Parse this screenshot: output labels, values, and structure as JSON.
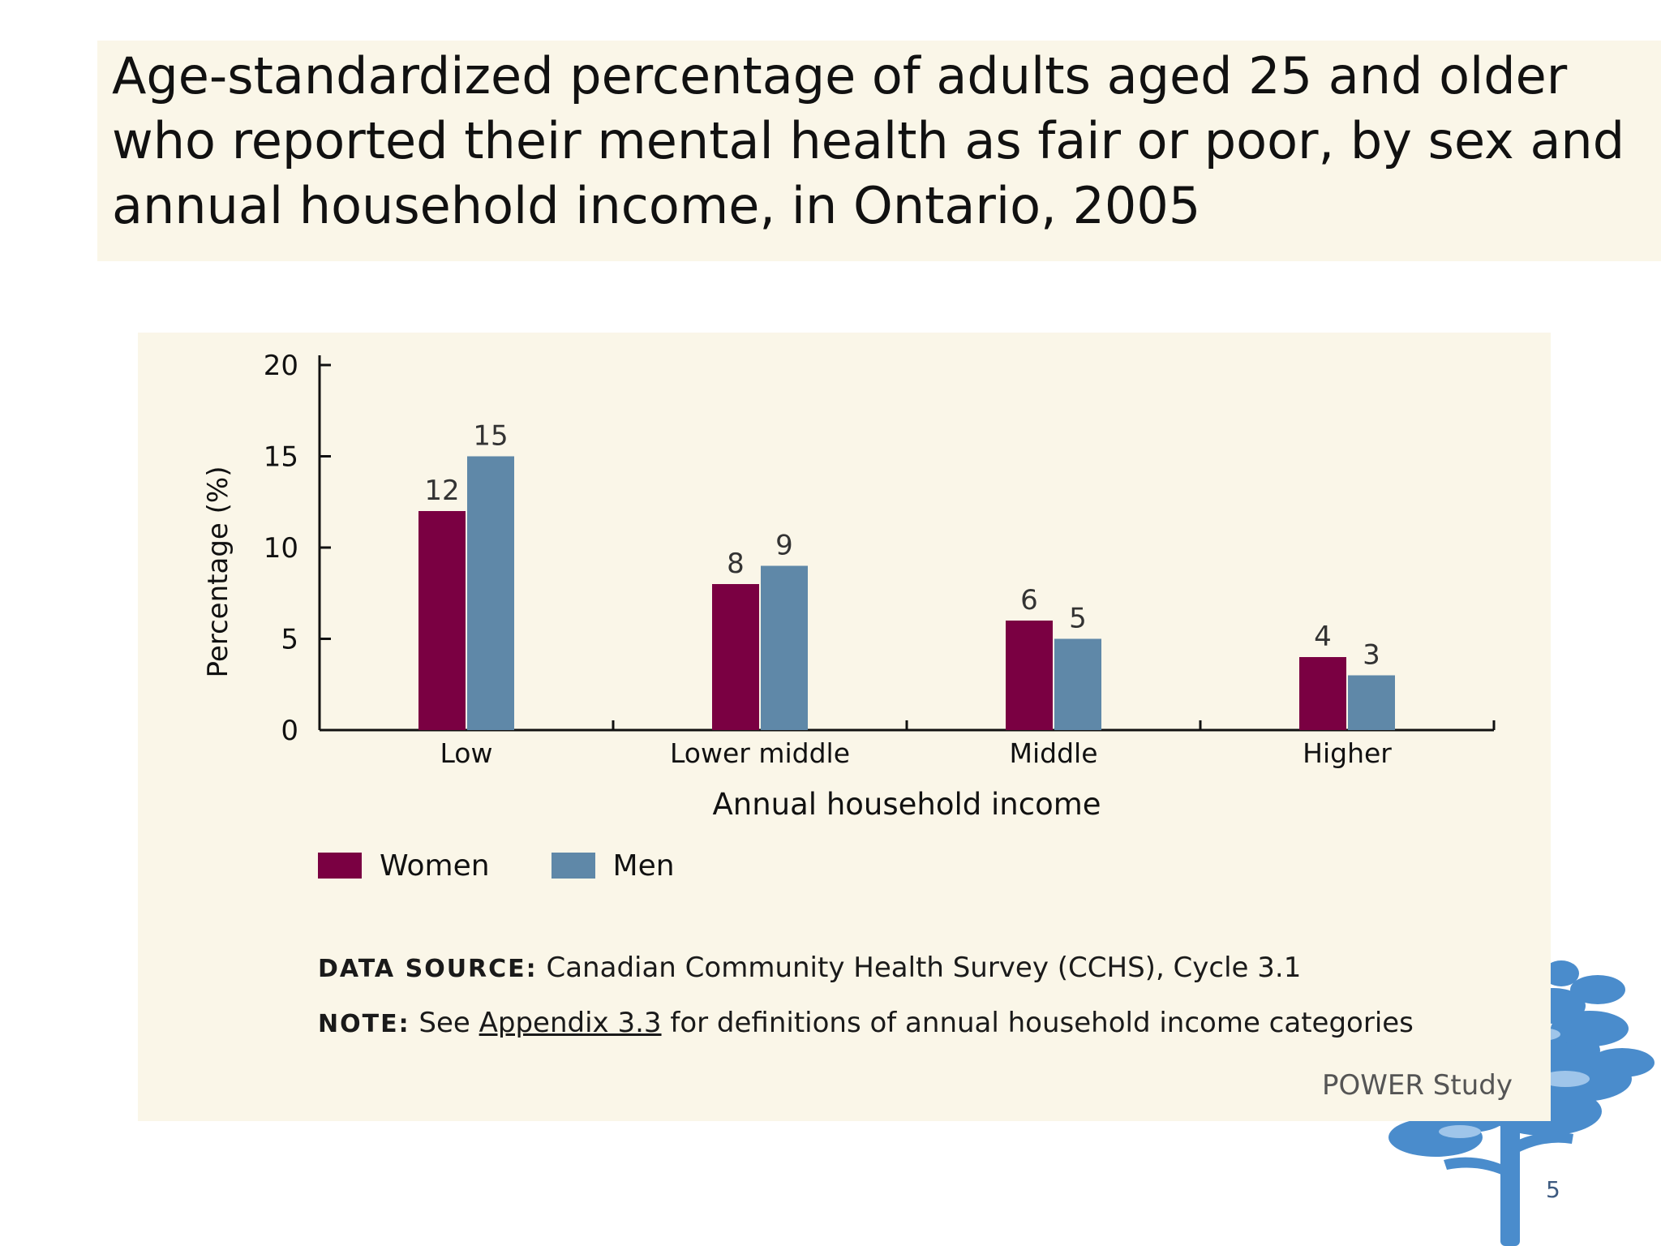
{
  "slide": {
    "title": "Age-standardized percentage of adults aged 25 and older who reported their mental health as fair or poor, by sex and annual household income, in Ontario, 2005",
    "watermark": "POWER Study",
    "page_number": "5"
  },
  "notes": {
    "data_source_key": "DATA SOURCE:",
    "data_source_text": "Canadian Community Health Survey (CCHS), Cycle 3.1",
    "note_key": "NOTE:",
    "note_prefix": "See",
    "note_link": "Appendix 3.3",
    "note_suffix": "for definitions of annual household income categories"
  },
  "colors": {
    "women": "#7a0042",
    "men": "#5f88a8",
    "panel": "#faf6e8",
    "tree": "#4a8ccc"
  },
  "chart_data": {
    "type": "bar",
    "title": "",
    "xlabel": "Annual household income",
    "ylabel": "Percentage (%)",
    "categories": [
      "Low",
      "Lower middle",
      "Middle",
      "Higher"
    ],
    "series": [
      {
        "name": "Women",
        "values": [
          12,
          8,
          6,
          4
        ]
      },
      {
        "name": "Men",
        "values": [
          15,
          9,
          5,
          3
        ]
      }
    ],
    "ylim": [
      0,
      20
    ],
    "yticks": [
      0,
      5,
      10,
      15,
      20
    ],
    "grid": false,
    "legend_position": "bottom-left"
  }
}
